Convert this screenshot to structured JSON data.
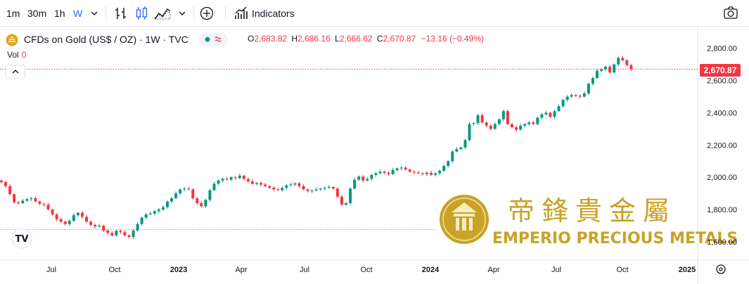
{
  "toolbar": {
    "intervals": [
      "1m",
      "30m",
      "1h",
      "W"
    ],
    "active_interval": "W",
    "indicators_label": "Indicators"
  },
  "legend": {
    "symbol": "CFDs on Gold (US$ / OZ) · 1W · TVC",
    "o_label": "O",
    "o": "2,683.82",
    "h_label": "H",
    "h": "2,686.16",
    "l_label": "L",
    "l": "2,666.62",
    "c_label": "C",
    "c": "2,670.87",
    "change": "−13.16 (−0.49%)",
    "vol_label": "Vol",
    "vol": "0"
  },
  "last_price": "2,670.87",
  "watermark": {
    "chinese": "帝鋒貴金屬",
    "english": "EMPERIO PRECIOUS METALS"
  },
  "colors": {
    "up": "#089981",
    "down": "#f23645",
    "accent": "#2962ff",
    "gold": "#c9a227"
  },
  "chart_data": {
    "type": "candlestick",
    "title": "CFDs on Gold (US$ / OZ) · 1W · TVC",
    "xlabel": "",
    "ylabel": "",
    "ylim": [
      1540,
      2880
    ],
    "x_ticks": [
      "Jul",
      "Oct",
      "2023",
      "Apr",
      "Jul",
      "Oct",
      "2024",
      "Apr",
      "Jul",
      "Oct",
      "2025"
    ],
    "y_ticks": [
      "1,600.00",
      "1,800.00",
      "2,000.00",
      "2,200.00",
      "2,400.00",
      "2,600.00",
      "2,800.00"
    ],
    "grid": false,
    "closes": [
      1970,
      1945,
      1895,
      1845,
      1840,
      1855,
      1865,
      1870,
      1850,
      1835,
      1830,
      1800,
      1770,
      1740,
      1725,
      1710,
      1730,
      1765,
      1780,
      1755,
      1725,
      1705,
      1695,
      1700,
      1670,
      1655,
      1640,
      1668,
      1660,
      1640,
      1630,
      1670,
      1710,
      1750,
      1770,
      1775,
      1790,
      1800,
      1815,
      1850,
      1870,
      1900,
      1925,
      1930,
      1925,
      1870,
      1840,
      1820,
      1860,
      1920,
      1960,
      1980,
      1990,
      1985,
      2000,
      1995,
      2010,
      1990,
      1975,
      1960,
      1965,
      1955,
      1945,
      1935,
      1925,
      1920,
      1935,
      1950,
      1955,
      1962,
      1945,
      1925,
      1915,
      1918,
      1925,
      1930,
      1935,
      1940,
      1930,
      1880,
      1830,
      1840,
      1930,
      1985,
      2005,
      1980,
      1990,
      2015,
      2025,
      2035,
      2028,
      2020,
      2045,
      2055,
      2060,
      2048,
      2035,
      2030,
      2025,
      2020,
      2028,
      2015,
      2025,
      2040,
      2070,
      2100,
      2160,
      2175,
      2185,
      2230,
      2330,
      2335,
      2385,
      2340,
      2320,
      2300,
      2330,
      2360,
      2410,
      2330,
      2310,
      2295,
      2320,
      2330,
      2340,
      2330,
      2370,
      2390,
      2400,
      2375,
      2410,
      2440,
      2480,
      2500,
      2510,
      2505,
      2500,
      2520,
      2580,
      2615,
      2660,
      2670,
      2685,
      2650,
      2700,
      2740,
      2725,
      2695,
      2670
    ],
    "last_close": 2670.87,
    "reference_lines": [
      2670.87,
      1676
    ]
  }
}
